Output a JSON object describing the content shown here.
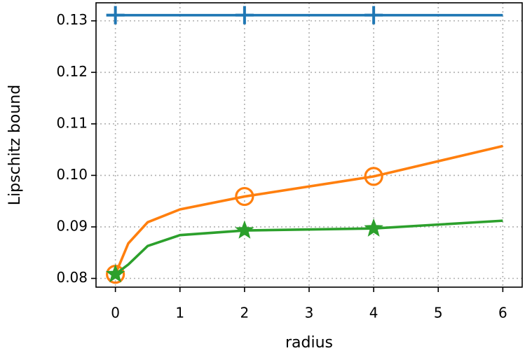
{
  "chart_data": {
    "type": "line",
    "xlabel": "radius",
    "ylabel": "Lipschitz bound",
    "x": [
      0,
      0.2,
      0.5,
      1,
      2,
      4,
      6
    ],
    "series": [
      {
        "color": "#1f77b4",
        "marker": "plus",
        "values": [
          0.1311,
          0.1311,
          0.1311,
          0.1311,
          0.1311,
          0.1311,
          0.1311
        ]
      },
      {
        "color": "#ff7f0e",
        "marker": "circle",
        "values": [
          0.0808,
          0.0868,
          0.0909,
          0.0934,
          0.0959,
          0.0998,
          0.1057
        ]
      },
      {
        "color": "#2ca02c",
        "marker": "star",
        "values": [
          0.0808,
          0.0827,
          0.0863,
          0.0884,
          0.0893,
          0.0897,
          0.0912
        ]
      }
    ],
    "markevery": [
      0,
      4,
      5
    ],
    "xlim": [
      -0.3,
      6.3
    ],
    "ylim": [
      0.0783,
      0.1335
    ],
    "xticks": [
      0,
      1,
      2,
      3,
      4,
      5,
      6
    ],
    "yticks": [
      0.08,
      0.09,
      {
        "value": 0.1,
        "label": "0.10"
      },
      0.11,
      0.12,
      0.13
    ],
    "grid": true
  }
}
